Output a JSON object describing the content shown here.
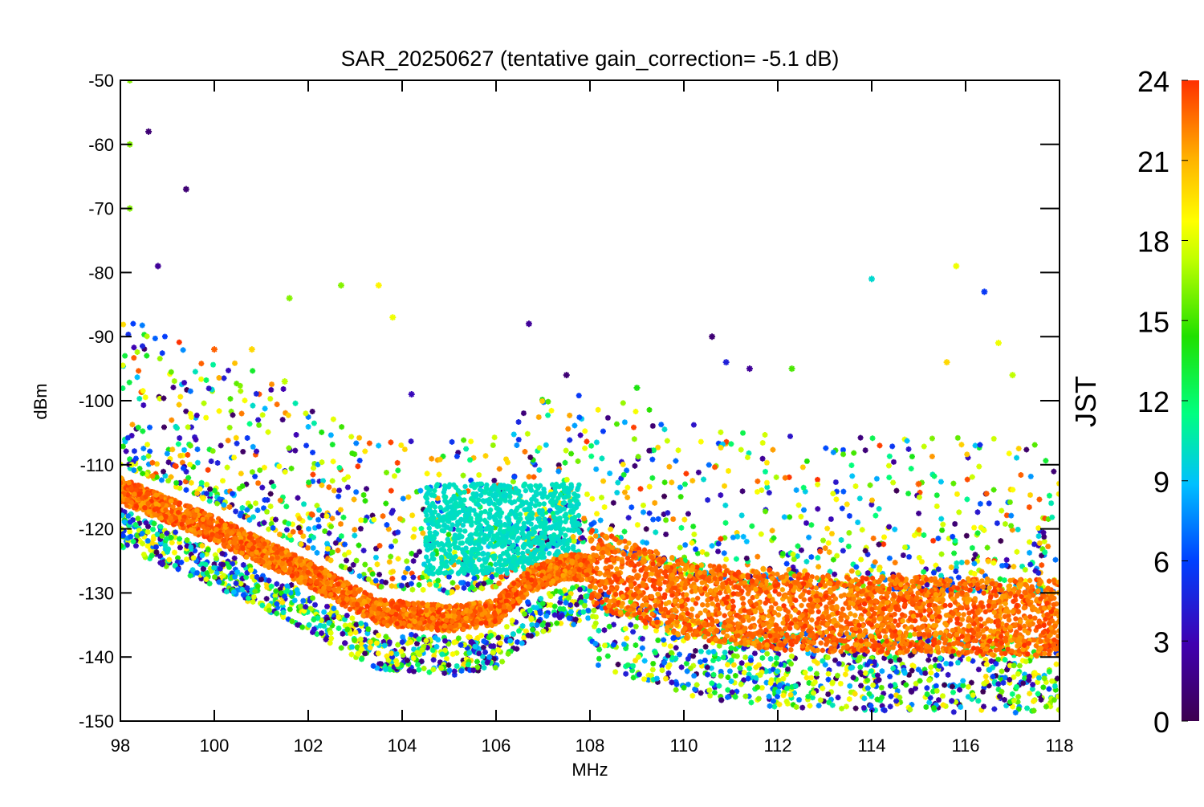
{
  "chart_data": {
    "type": "scatter",
    "title": "SAR_20250627 (tentative gain_correction= -5.1 dB)",
    "xlabel": "MHz",
    "ylabel": "dBm",
    "xlim": [
      98,
      118
    ],
    "ylim": [
      -150,
      -50
    ],
    "x_ticks": [
      98,
      100,
      102,
      104,
      106,
      108,
      110,
      112,
      114,
      116,
      118
    ],
    "y_ticks": [
      -150,
      -140,
      -130,
      -120,
      -110,
      -100,
      -90,
      -80,
      -70,
      -60,
      -50
    ],
    "colorbar": {
      "label": "JST",
      "range": [
        0,
        24
      ],
      "ticks": [
        0,
        3,
        6,
        9,
        12,
        15,
        18,
        21,
        24
      ],
      "colormap": "rainbow",
      "colors": [
        "#3d0050",
        "#4000b0",
        "#0040ff",
        "#00c0ff",
        "#00ff80",
        "#20e000",
        "#c0ff00",
        "#ffff00",
        "#ffb000",
        "#ff3000"
      ]
    },
    "marker": "asterisk",
    "grid": false,
    "noise_floor": [
      {
        "x": 98,
        "y": -114
      },
      {
        "x": 100,
        "y": -120
      },
      {
        "x": 102,
        "y": -127
      },
      {
        "x": 103.5,
        "y": -133
      },
      {
        "x": 105,
        "y": -134
      },
      {
        "x": 106,
        "y": -133
      },
      {
        "x": 106.7,
        "y": -128
      },
      {
        "x": 107.5,
        "y": -126
      },
      {
        "x": 108,
        "y": -126
      },
      {
        "x": 110,
        "y": -131
      },
      {
        "x": 112,
        "y": -133
      },
      {
        "x": 118,
        "y": -134
      }
    ],
    "highlight_points": [
      {
        "x": 98.2,
        "y": -50,
        "jst": 15
      },
      {
        "x": 98.2,
        "y": -60,
        "jst": 15
      },
      {
        "x": 98.2,
        "y": -70,
        "jst": 15
      },
      {
        "x": 98.6,
        "y": -58,
        "jst": 1
      },
      {
        "x": 99.4,
        "y": -67,
        "jst": 1
      },
      {
        "x": 98.8,
        "y": -79,
        "jst": 2
      },
      {
        "x": 100.0,
        "y": -92,
        "jst": 23
      },
      {
        "x": 100.8,
        "y": -92,
        "jst": 20
      },
      {
        "x": 101.5,
        "y": -97,
        "jst": 16
      },
      {
        "x": 101.6,
        "y": -84,
        "jst": 15
      },
      {
        "x": 102.7,
        "y": -82,
        "jst": 15
      },
      {
        "x": 103.5,
        "y": -82,
        "jst": 19
      },
      {
        "x": 103.8,
        "y": -87,
        "jst": 18
      },
      {
        "x": 104.2,
        "y": -99,
        "jst": 3
      },
      {
        "x": 106.7,
        "y": -88,
        "jst": 2
      },
      {
        "x": 107.5,
        "y": -96,
        "jst": 1
      },
      {
        "x": 109.0,
        "y": -98,
        "jst": 13
      },
      {
        "x": 110.6,
        "y": -90,
        "jst": 1
      },
      {
        "x": 110.9,
        "y": -94,
        "jst": 4
      },
      {
        "x": 111.4,
        "y": -95,
        "jst": 2
      },
      {
        "x": 112.3,
        "y": -95,
        "jst": 14
      },
      {
        "x": 114.0,
        "y": -81,
        "jst": 9
      },
      {
        "x": 115.0,
        "y": -113,
        "jst": 23
      },
      {
        "x": 115.6,
        "y": -94,
        "jst": 20
      },
      {
        "x": 115.8,
        "y": -79,
        "jst": 18
      },
      {
        "x": 116.4,
        "y": -83,
        "jst": 5
      },
      {
        "x": 116.7,
        "y": -91,
        "jst": 18
      },
      {
        "x": 117.0,
        "y": -96,
        "jst": 16
      }
    ]
  }
}
